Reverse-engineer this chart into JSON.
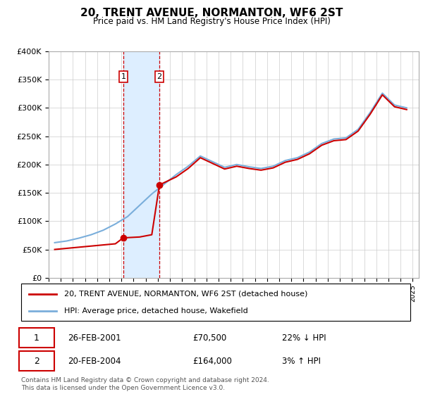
{
  "title": "20, TRENT AVENUE, NORMANTON, WF6 2ST",
  "subtitle": "Price paid vs. HM Land Registry's House Price Index (HPI)",
  "ylim": [
    0,
    400000
  ],
  "yticks": [
    0,
    50000,
    100000,
    150000,
    200000,
    250000,
    300000,
    350000,
    400000
  ],
  "ytick_labels": [
    "£0",
    "£50K",
    "£100K",
    "£150K",
    "£200K",
    "£250K",
    "£300K",
    "£350K",
    "£400K"
  ],
  "xlim_start": 1995.0,
  "xlim_end": 2025.5,
  "transaction1": {
    "date": "26-FEB-2001",
    "year": 2001.15,
    "price": 70500,
    "label": "1",
    "hpi_pct": "22% ↓ HPI",
    "price_str": "£70,500"
  },
  "transaction2": {
    "date": "20-FEB-2004",
    "year": 2004.13,
    "price": 164000,
    "label": "2",
    "hpi_pct": "3% ↑ HPI",
    "price_str": "£164,000"
  },
  "red_line_color": "#cc0000",
  "blue_line_color": "#7aaedb",
  "shade_color": "#ddeeff",
  "legend1": "20, TRENT AVENUE, NORMANTON, WF6 2ST (detached house)",
  "legend2": "HPI: Average price, detached house, Wakefield",
  "footer": "Contains HM Land Registry data © Crown copyright and database right 2024.\nThis data is licensed under the Open Government Licence v3.0.",
  "hpi_years": [
    1995.5,
    1996.5,
    1997.5,
    1998.5,
    1999.5,
    2000.5,
    2001.5,
    2002.5,
    2003.5,
    2004.5,
    2005.5,
    2006.5,
    2007.5,
    2008.5,
    2009.5,
    2010.5,
    2011.5,
    2012.5,
    2013.5,
    2014.5,
    2015.5,
    2016.5,
    2017.5,
    2018.5,
    2019.5,
    2020.5,
    2021.5,
    2022.5,
    2023.5,
    2024.5
  ],
  "hpi_values": [
    62000,
    65000,
    70000,
    76000,
    84000,
    95000,
    108000,
    128000,
    148000,
    165000,
    182000,
    197000,
    215000,
    205000,
    195000,
    200000,
    196000,
    193000,
    197000,
    207000,
    212000,
    222000,
    237000,
    245000,
    247000,
    262000,
    292000,
    326000,
    305000,
    300000
  ],
  "red_years": [
    1995.5,
    1996.5,
    1997.5,
    1998.5,
    1999.5,
    2000.5,
    2001.15,
    2002.5,
    2003.5,
    2004.13,
    2005.5,
    2006.5,
    2007.5,
    2008.5,
    2009.5,
    2010.5,
    2011.5,
    2012.5,
    2013.5,
    2014.5,
    2015.5,
    2016.5,
    2017.5,
    2018.5,
    2019.5,
    2020.5,
    2021.5,
    2022.5,
    2023.5,
    2024.5
  ],
  "red_values": [
    50000,
    52000,
    54000,
    56000,
    58000,
    60000,
    70500,
    72000,
    76000,
    164000,
    178000,
    193000,
    212000,
    202000,
    192000,
    197000,
    193000,
    190000,
    194000,
    204000,
    209000,
    219000,
    234000,
    242000,
    244000,
    259000,
    289000,
    323000,
    302000,
    297000
  ]
}
